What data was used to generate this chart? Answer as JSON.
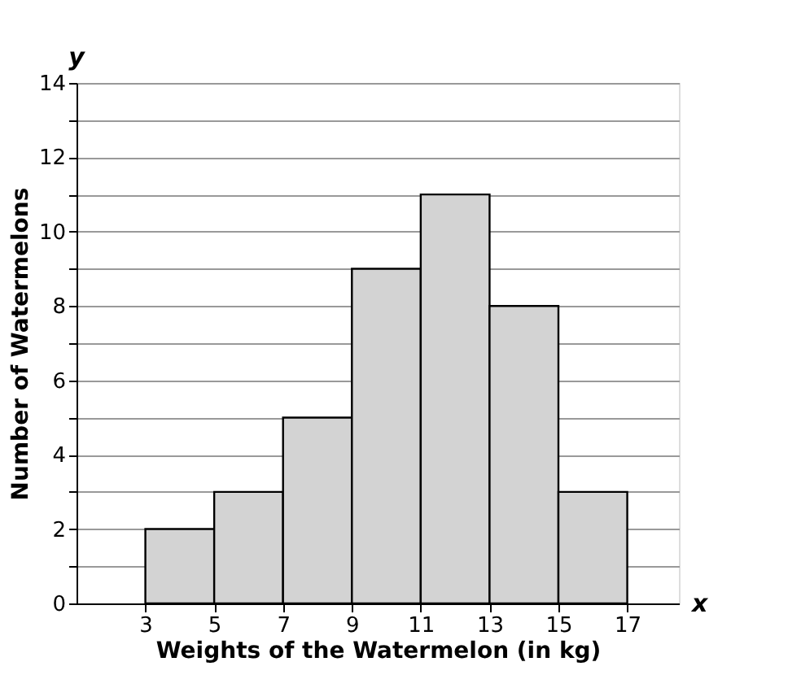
{
  "chart_data": {
    "type": "histogram",
    "xlabel": "Weights of the Watermelon (in kg)",
    "ylabel": "Number of Watermelons",
    "bins": [
      3,
      5,
      7,
      9,
      11,
      13,
      15,
      17
    ],
    "values": [
      2,
      3,
      5,
      9,
      11,
      8,
      3
    ],
    "color": "#d3d3d3",
    "xlim": [
      1,
      18.5
    ],
    "xticks": [
      3,
      5,
      7,
      9,
      11,
      13,
      15,
      17
    ],
    "ylim": [
      0,
      14
    ],
    "yticks": [
      0,
      {
        "value": 1,
        "label": null
      },
      2,
      {
        "value": 3,
        "label": null
      },
      4,
      {
        "value": 5,
        "label": null
      },
      6,
      {
        "value": 7,
        "label": null
      },
      8,
      {
        "value": 9,
        "label": null
      },
      10,
      {
        "value": 11,
        "label": null
      },
      12,
      {
        "value": 13,
        "label": null
      },
      14
    ],
    "grid": "y",
    "annotations": [
      "x",
      "y"
    ]
  }
}
